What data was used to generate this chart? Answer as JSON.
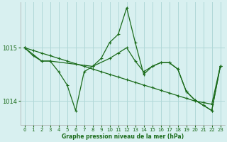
{
  "xlabel": "Graphe pression niveau de la mer (hPa)",
  "bg_color": "#d8f0f0",
  "grid_color": "#b0d8d8",
  "line_color": "#1a6b1a",
  "xlim": [
    -0.5,
    23.5
  ],
  "ylim": [
    1013.55,
    1015.85
  ],
  "yticks": [
    1014,
    1015
  ],
  "xticks": [
    0,
    1,
    2,
    3,
    4,
    5,
    6,
    7,
    8,
    9,
    10,
    11,
    12,
    13,
    14,
    15,
    16,
    17,
    18,
    19,
    20,
    21,
    22,
    23
  ],
  "line1_x": [
    0,
    1,
    2,
    3,
    4,
    5,
    6,
    7,
    8,
    9,
    10,
    11,
    12,
    13,
    14,
    15,
    16,
    17,
    18,
    19,
    20,
    21,
    22,
    23
  ],
  "line1_y": [
    1015.0,
    1014.85,
    1014.75,
    1014.75,
    1014.55,
    1014.3,
    1013.82,
    1014.55,
    1014.65,
    1014.8,
    1015.1,
    1015.25,
    1015.75,
    1015.1,
    1014.5,
    1014.65,
    1014.72,
    1014.72,
    1014.6,
    1014.18,
    1014.02,
    1013.92,
    1013.82,
    1014.65
  ],
  "line2_x": [
    0,
    2,
    3,
    8,
    10,
    11,
    12,
    13,
    14,
    15,
    16,
    17,
    18,
    19,
    20,
    21,
    22,
    23
  ],
  "line2_y": [
    1015.0,
    1014.75,
    1014.75,
    1014.65,
    1014.8,
    1014.9,
    1015.0,
    1014.75,
    1014.55,
    1014.65,
    1014.72,
    1014.72,
    1014.6,
    1014.18,
    1014.02,
    1013.92,
    1013.82,
    1014.65
  ],
  "line3_x": [
    0,
    1,
    2,
    3,
    4,
    5,
    6,
    7,
    8,
    9,
    10,
    11,
    12,
    13,
    14,
    15,
    16,
    17,
    18,
    19,
    20,
    21,
    22,
    23
  ],
  "line3_y": [
    1015.0,
    1014.95,
    1014.9,
    1014.85,
    1014.8,
    1014.75,
    1014.7,
    1014.65,
    1014.6,
    1014.55,
    1014.5,
    1014.45,
    1014.4,
    1014.35,
    1014.3,
    1014.25,
    1014.2,
    1014.15,
    1014.1,
    1014.05,
    1014.0,
    1013.97,
    1013.94,
    1014.65
  ]
}
